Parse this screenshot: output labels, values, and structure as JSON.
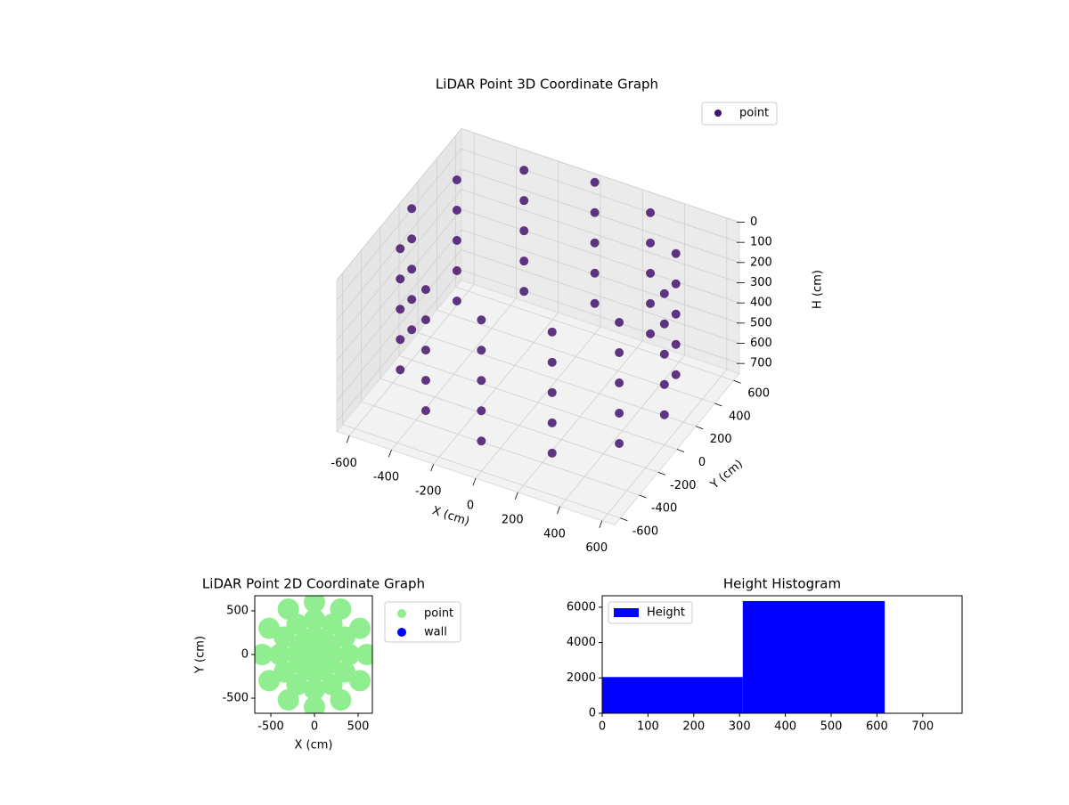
{
  "chart_data": [
    {
      "type": "scatter3d",
      "title": "LiDAR Point 3D Coordinate Graph",
      "xlabel": "X (cm)",
      "ylabel": "Y (cm)",
      "zlabel": "H (cm)",
      "xlim": [
        -660,
        660
      ],
      "ylim": [
        -660,
        660
      ],
      "zlim": [
        0,
        750
      ],
      "invert_z": true,
      "xticks": [
        -600,
        -400,
        -200,
        0,
        200,
        400,
        600
      ],
      "yticks": [
        -600,
        -400,
        -200,
        0,
        200,
        400,
        600
      ],
      "zticks": [
        0,
        100,
        200,
        300,
        400,
        500,
        600,
        700
      ],
      "grid": true,
      "legend": "upper right",
      "series": [
        {
          "name": "point",
          "color": "#45146f",
          "x": [
            600,
            520,
            300,
            0,
            -300,
            -520,
            -600,
            -520,
            -300,
            0,
            300,
            520,
            600,
            520,
            300,
            0,
            -300,
            -520,
            -600,
            -520,
            -300,
            0,
            300,
            520,
            600,
            520,
            300,
            0,
            -300,
            -520,
            -600,
            -520,
            -300,
            0,
            300,
            520,
            600,
            520,
            300,
            0,
            -300,
            -520,
            -600,
            -520,
            -300,
            0,
            300,
            520,
            600,
            520,
            300,
            0,
            -300,
            -520,
            -600,
            -520,
            -300,
            0,
            300,
            520
          ],
          "y": [
            0,
            300,
            520,
            600,
            520,
            300,
            0,
            -300,
            -520,
            -600,
            -520,
            -300,
            0,
            300,
            520,
            600,
            520,
            300,
            0,
            -300,
            -520,
            -600,
            -520,
            -300,
            0,
            300,
            520,
            600,
            520,
            300,
            0,
            -300,
            -520,
            -600,
            -520,
            -300,
            0,
            300,
            520,
            600,
            520,
            300,
            0,
            -300,
            -520,
            -600,
            -520,
            -300,
            0,
            300,
            520,
            600,
            520,
            300,
            0,
            -300,
            -520,
            -600,
            -520,
            -300
          ],
          "z": [
            0,
            0,
            0,
            0,
            0,
            0,
            0,
            0,
            0,
            0,
            0,
            0,
            150,
            150,
            150,
            150,
            150,
            150,
            150,
            150,
            150,
            150,
            150,
            150,
            300,
            300,
            300,
            300,
            300,
            300,
            300,
            300,
            300,
            300,
            300,
            300,
            450,
            450,
            450,
            450,
            450,
            450,
            450,
            450,
            450,
            450,
            450,
            450,
            600,
            600,
            600,
            600,
            600,
            600,
            600,
            600,
            600,
            600,
            600,
            600
          ]
        }
      ]
    },
    {
      "type": "scatter",
      "title": "LiDAR Point 2D Coordinate Graph",
      "xlabel": "X (cm)",
      "ylabel": "Y (cm)",
      "xlim": [
        -684,
        663
      ],
      "ylim": [
        -673,
        673
      ],
      "xticks": [
        -500,
        0,
        500
      ],
      "yticks": [
        -500,
        0,
        500
      ],
      "legend": "outside right",
      "series": [
        {
          "name": "point",
          "color": "#90ee90",
          "x": [
            600,
            520,
            300,
            0,
            -300,
            -520,
            -600,
            -520,
            -300,
            0,
            300,
            520,
            400,
            346,
            200,
            0,
            -200,
            -346,
            -400,
            -346,
            -200,
            0,
            200,
            346,
            200,
            173,
            100,
            0,
            -100,
            -173,
            -200,
            -173,
            -100,
            0,
            100,
            173,
            0
          ],
          "y": [
            0,
            300,
            520,
            600,
            520,
            300,
            0,
            -300,
            -520,
            -600,
            -520,
            -300,
            0,
            200,
            346,
            400,
            346,
            200,
            0,
            -200,
            -346,
            -400,
            -346,
            -200,
            0,
            100,
            173,
            200,
            173,
            100,
            0,
            -100,
            -173,
            -200,
            -173,
            -100,
            0
          ]
        },
        {
          "name": "wall",
          "color": "#0000ff",
          "x": [],
          "y": []
        }
      ]
    },
    {
      "type": "histogram",
      "title": "Height Histogram",
      "bins": [
        0,
        307,
        617
      ],
      "counts": [
        2050,
        6350
      ],
      "series_name": "Height",
      "color": "#0000ff",
      "xlim": [
        0,
        786
      ],
      "ylim": [
        0,
        6650
      ],
      "xticks": [
        0,
        100,
        200,
        300,
        400,
        500,
        600,
        700
      ],
      "yticks": [
        0,
        2000,
        4000,
        6000
      ],
      "legend": "upper left"
    }
  ]
}
